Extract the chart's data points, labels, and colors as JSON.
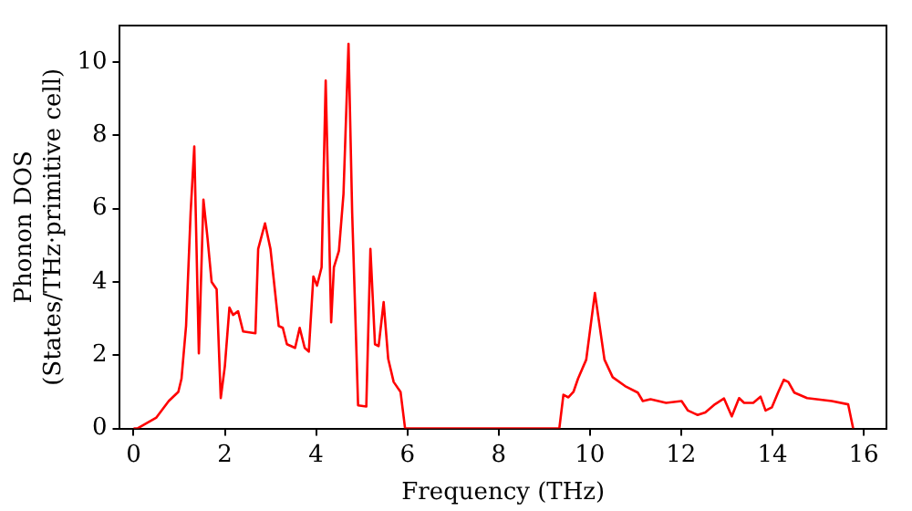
{
  "chart_data": {
    "type": "line",
    "xlabel": "Frequency (THz)",
    "ylabel": "Phonon DOS\n(States/THz·primitive cell)",
    "xlim": [
      -0.3,
      16.5
    ],
    "ylim": [
      0,
      11
    ],
    "xticks": [
      0,
      2,
      4,
      6,
      8,
      10,
      12,
      14,
      16
    ],
    "yticks": [
      0,
      2,
      4,
      6,
      8,
      10
    ],
    "grid": false,
    "legend": false,
    "marker": "none",
    "line_style": "solid",
    "series": [
      {
        "color": "#ff0000",
        "x": [
          0,
          0.08,
          0.5,
          0.77,
          0.98,
          1.05,
          1.15,
          1.25,
          1.33,
          1.43,
          1.53,
          1.62,
          1.71,
          1.82,
          1.91,
          2.0,
          2.1,
          2.18,
          2.29,
          2.4,
          2.67,
          2.73,
          2.88,
          3.0,
          3.18,
          3.27,
          3.36,
          3.54,
          3.64,
          3.75,
          3.84,
          3.94,
          4.02,
          4.12,
          4.21,
          4.33,
          4.39,
          4.5,
          4.6,
          4.71,
          4.79,
          4.92,
          5.1,
          5.19,
          5.29,
          5.37,
          5.48,
          5.58,
          5.7,
          5.85,
          5.95,
          9.33,
          9.42,
          9.53,
          9.64,
          9.74,
          9.92,
          10.11,
          10.32,
          10.5,
          10.77,
          11.05,
          11.16,
          11.33,
          11.67,
          12.01,
          12.15,
          12.36,
          12.53,
          12.74,
          12.94,
          13.11,
          13.27,
          13.38,
          13.58,
          13.74,
          13.85,
          13.99,
          14.13,
          14.25,
          14.35,
          14.48,
          14.76,
          15.3,
          15.66,
          15.77
        ],
        "values": [
          0,
          0,
          0.3,
          0.75,
          1.0,
          1.36,
          2.8,
          5.9,
          7.7,
          2.05,
          6.25,
          5.2,
          4.0,
          3.8,
          0.83,
          1.7,
          3.3,
          3.1,
          3.2,
          2.65,
          2.6,
          4.9,
          5.6,
          4.9,
          2.8,
          2.75,
          2.3,
          2.2,
          2.75,
          2.2,
          2.1,
          4.15,
          3.9,
          4.4,
          9.5,
          2.9,
          4.4,
          4.85,
          6.4,
          10.5,
          5.9,
          0.63,
          0.6,
          4.9,
          2.3,
          2.25,
          3.45,
          1.9,
          1.27,
          1.0,
          0,
          0,
          0.92,
          0.85,
          1.0,
          1.36,
          1.88,
          3.7,
          1.88,
          1.4,
          1.16,
          0.98,
          0.75,
          0.8,
          0.7,
          0.75,
          0.49,
          0.37,
          0.44,
          0.66,
          0.82,
          0.33,
          0.83,
          0.7,
          0.7,
          0.87,
          0.49,
          0.58,
          1.0,
          1.33,
          1.27,
          0.98,
          0.83,
          0.75,
          0.66,
          0
        ]
      }
    ]
  }
}
